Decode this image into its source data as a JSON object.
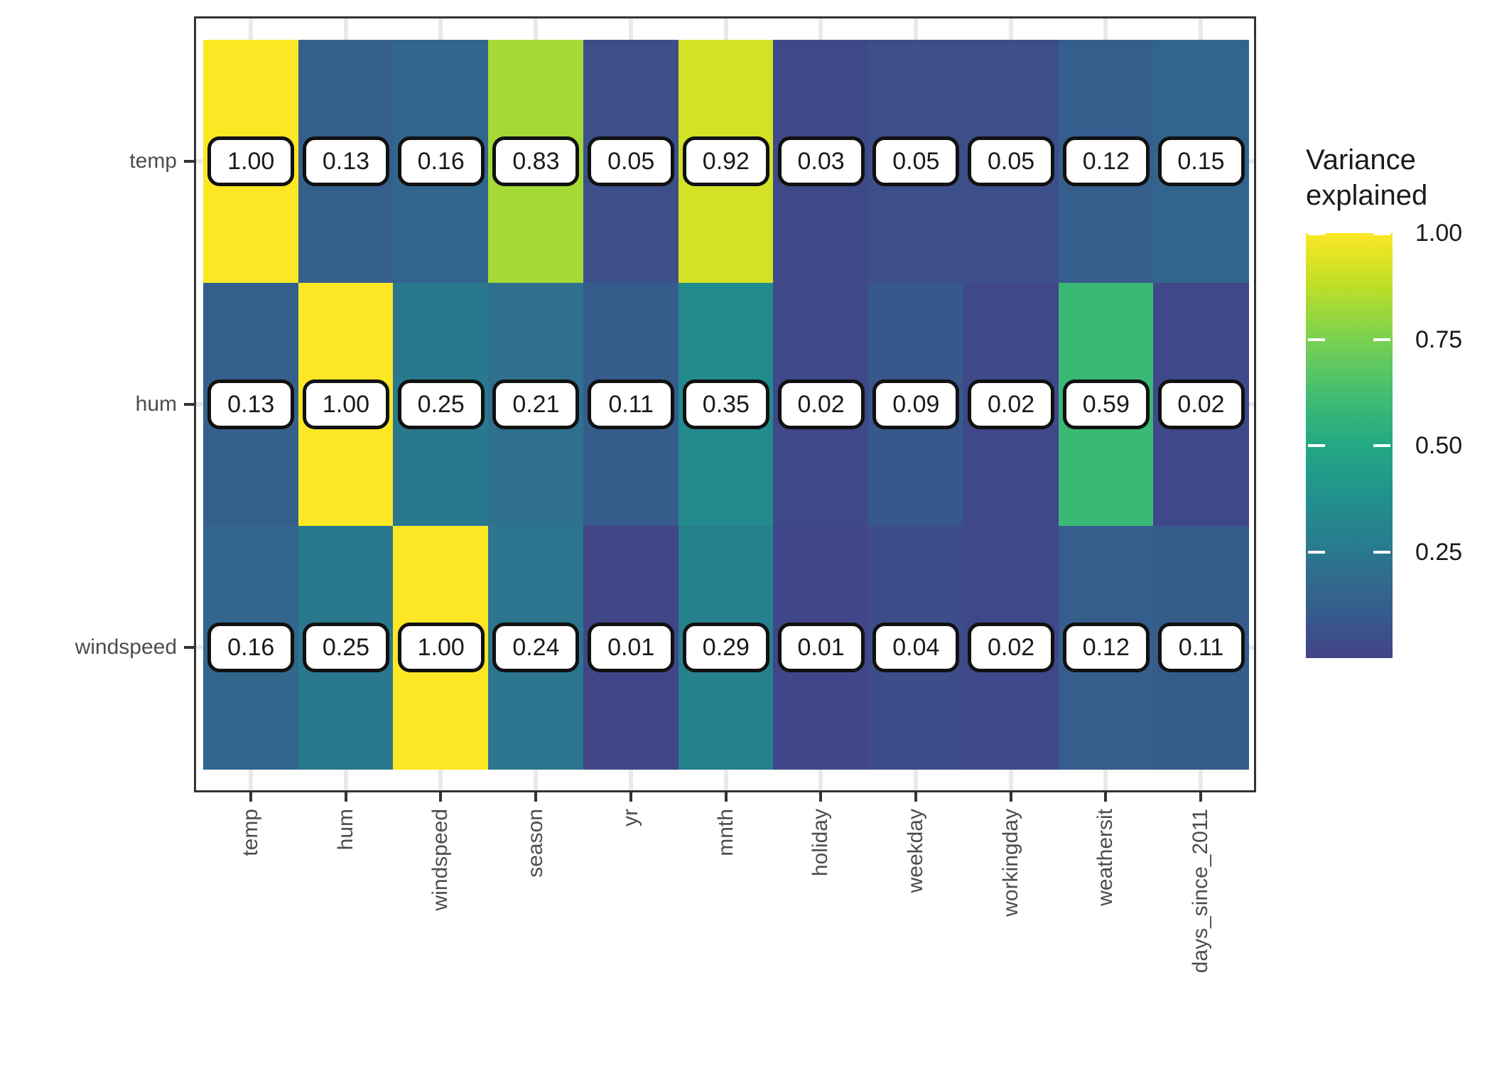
{
  "chart_data": {
    "type": "heatmap",
    "legend_title": "Variance explained",
    "rows": [
      "temp",
      "hum",
      "windspeed"
    ],
    "columns": [
      "temp",
      "hum",
      "windspeed",
      "season",
      "yr",
      "mnth",
      "holiday",
      "weekday",
      "workingday",
      "weathersit",
      "days_since_2011"
    ],
    "values": [
      [
        1.0,
        0.13,
        0.16,
        0.83,
        0.05,
        0.92,
        0.03,
        0.05,
        0.05,
        0.12,
        0.15
      ],
      [
        0.13,
        1.0,
        0.25,
        0.21,
        0.11,
        0.35,
        0.02,
        0.09,
        0.02,
        0.59,
        0.02
      ],
      [
        0.16,
        0.25,
        1.0,
        0.24,
        0.01,
        0.29,
        0.01,
        0.04,
        0.02,
        0.12,
        0.11
      ]
    ],
    "value_decimals": 2,
    "colorbar": {
      "range": [
        0,
        1
      ],
      "ticks": [
        1.0,
        0.75,
        0.5,
        0.25
      ],
      "tick_labels": [
        "1.00",
        "0.75",
        "0.50",
        "0.25"
      ]
    },
    "colormap": {
      "name": "viridis",
      "begin": 0.2,
      "end": 1.0,
      "anchors": [
        [
          68,
          1,
          84
        ],
        [
          72,
          40,
          120
        ],
        [
          65,
          68,
          135
        ],
        [
          53,
          95,
          141
        ],
        [
          42,
          120,
          142
        ],
        [
          33,
          144,
          141
        ],
        [
          34,
          168,
          132
        ],
        [
          68,
          190,
          112
        ],
        [
          122,
          209,
          81
        ],
        [
          189,
          223,
          38
        ],
        [
          253,
          231,
          37
        ]
      ]
    },
    "colors": {
      "background": "#ffffff",
      "panel_border": "#333333",
      "gridline": "#e9e9e9",
      "tick_mark": "#333333",
      "axis_label_text": "#4d4d4d",
      "value_box_bg": "#ffffff",
      "value_box_border": "#111111",
      "value_text": "#1a1a1a",
      "legend_text": "#1a1a1a",
      "legend_tick_mark": "#ffffff"
    },
    "layout_hints": {
      "legend_position": "right",
      "x_label_rotation_deg": 90,
      "grid": "major-behind-tiles"
    }
  }
}
